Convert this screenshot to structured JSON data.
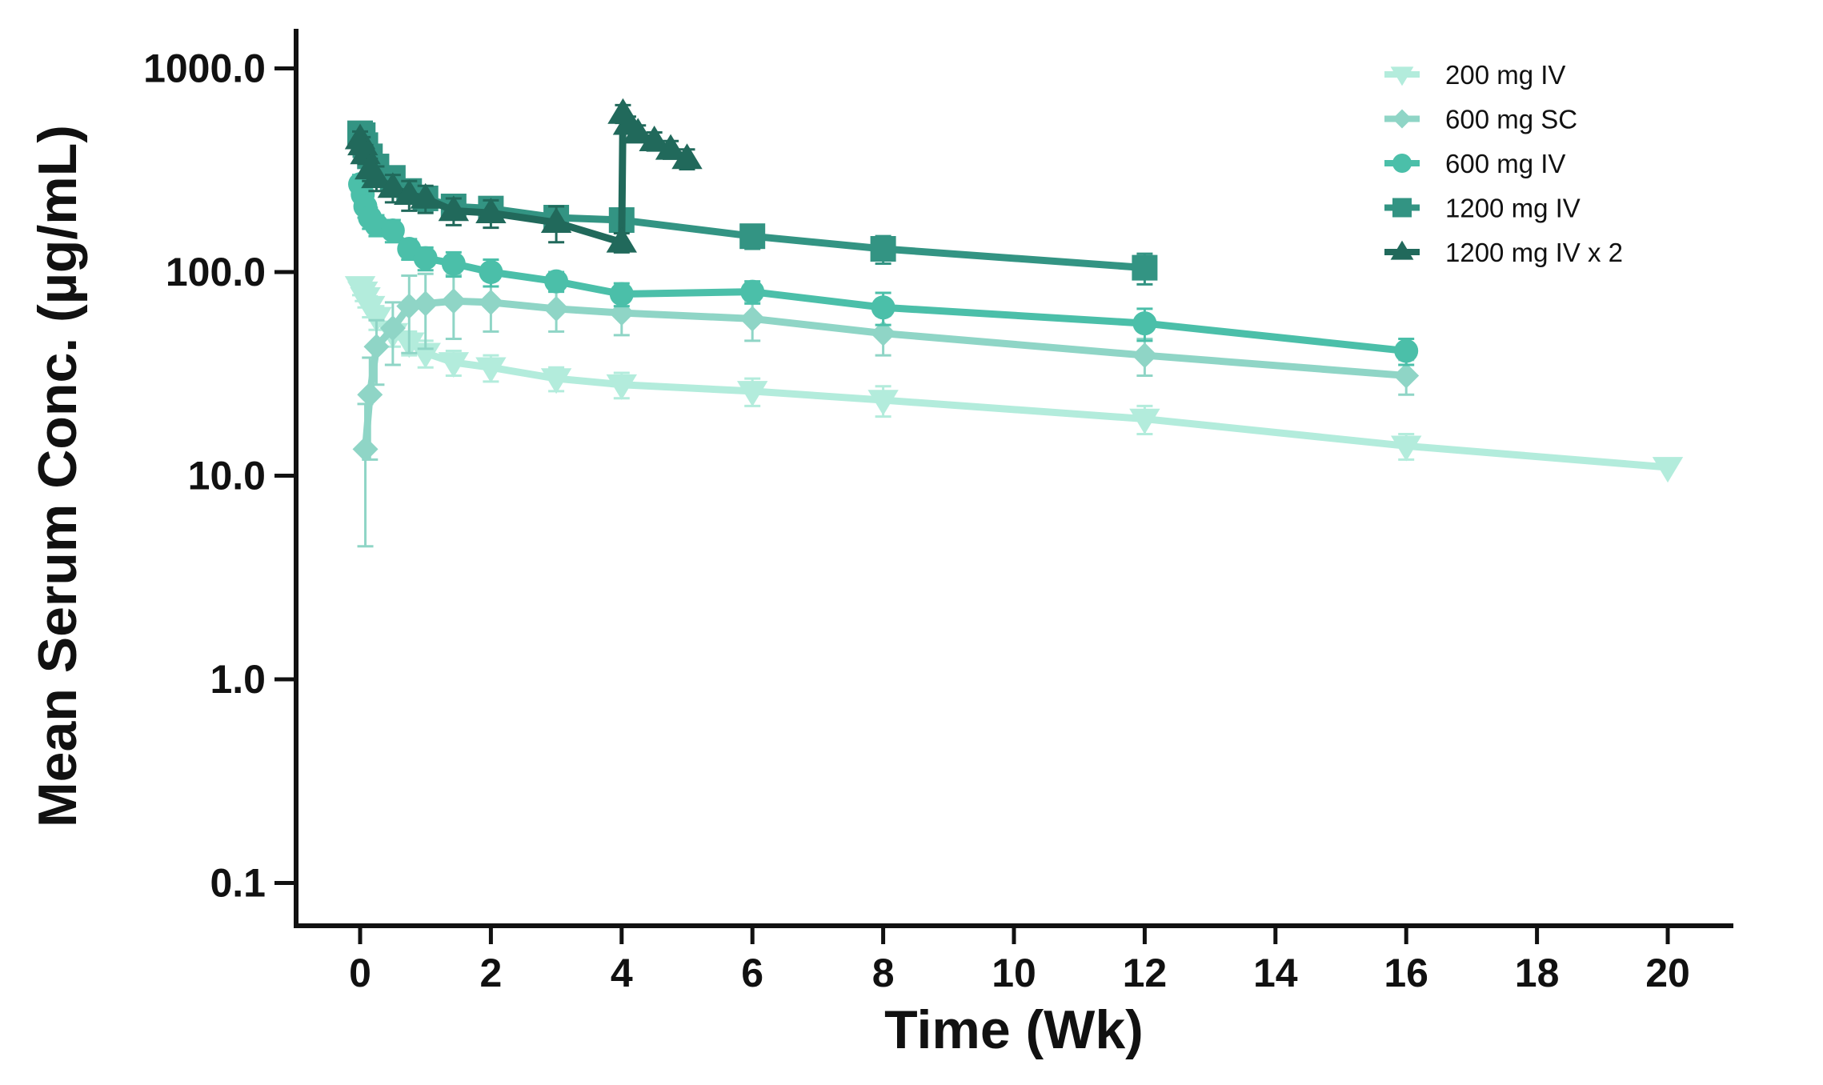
{
  "chart_data": {
    "type": "line",
    "title": "",
    "xlabel": "Time (Wk)",
    "ylabel": "Mean Serum Conc. (µg/mL)",
    "yscale": "log",
    "xlim": [
      -0.9,
      21
    ],
    "ylim": [
      0.05,
      1800
    ],
    "xticks": [
      "0",
      "2",
      "4",
      "6",
      "8",
      "10",
      "12",
      "14",
      "16",
      "18",
      "20"
    ],
    "yticks": [
      "0.1",
      "1.0",
      "10.0",
      "100.0",
      "1000.0"
    ],
    "grid": false,
    "legend_position": "top-right",
    "series": [
      {
        "name": "200 mg IV",
        "color": "#b3ecdc",
        "marker": "triangle-down",
        "x": [
          0,
          0.04,
          0.08,
          0.15,
          0.25,
          0.5,
          0.75,
          1,
          1.43,
          2,
          3,
          4,
          6,
          8,
          12,
          16,
          20
        ],
        "y": [
          85,
          80,
          75,
          68,
          60,
          50,
          45,
          40,
          36,
          34,
          30,
          28,
          26,
          23.5,
          19,
          14,
          11
        ],
        "err": [
          8,
          8,
          8,
          8,
          8,
          7,
          6,
          6,
          5,
          5,
          4,
          4,
          4,
          4,
          3,
          2,
          0
        ]
      },
      {
        "name": "600 mg SC",
        "color": "#8fd5c6",
        "marker": "diamond",
        "x": [
          0.08,
          0.15,
          0.25,
          0.5,
          0.75,
          1,
          1.43,
          2,
          3,
          4,
          6,
          8,
          12,
          16
        ],
        "y": [
          13.5,
          25,
          43,
          53,
          68,
          70,
          72,
          71,
          66,
          63,
          59,
          50,
          39,
          31
        ],
        "err": [
          9,
          13,
          15,
          18,
          28,
          28,
          25,
          20,
          15,
          14,
          13,
          11,
          8,
          6
        ]
      },
      {
        "name": "600 mg IV",
        "color": "#4bbfa9",
        "marker": "circle",
        "x": [
          0,
          0.04,
          0.08,
          0.15,
          0.25,
          0.5,
          0.75,
          1,
          1.43,
          2,
          3,
          4,
          6,
          8,
          12,
          16
        ],
        "y": [
          270,
          240,
          210,
          185,
          170,
          160,
          130,
          117,
          110,
          100,
          90,
          78,
          80,
          67,
          56,
          41
        ],
        "err": [
          30,
          30,
          25,
          22,
          20,
          20,
          15,
          15,
          15,
          15,
          10,
          10,
          10,
          12,
          10,
          6
        ]
      },
      {
        "name": "1200 mg IV",
        "color": "#339483",
        "marker": "square",
        "x": [
          0,
          0.04,
          0.08,
          0.15,
          0.25,
          0.5,
          0.75,
          1,
          1.43,
          2,
          3,
          4,
          6,
          8,
          12
        ],
        "y": [
          480,
          470,
          420,
          370,
          330,
          290,
          250,
          230,
          210,
          205,
          185,
          180,
          150,
          130,
          105
        ],
        "err": [
          40,
          40,
          40,
          40,
          40,
          35,
          30,
          30,
          25,
          20,
          20,
          20,
          20,
          20,
          18
        ]
      },
      {
        "name": "1200 mg IV x 2",
        "color": "#21695b",
        "marker": "triangle-up",
        "x": [
          0,
          0.04,
          0.08,
          0.15,
          0.25,
          0.5,
          0.75,
          1,
          1.43,
          2,
          3,
          4,
          4.02,
          4.1,
          4.25,
          4.5,
          4.75,
          5
        ],
        "y": [
          450,
          420,
          380,
          320,
          290,
          260,
          240,
          230,
          200,
          195,
          175,
          140,
          600,
          530,
          480,
          440,
          400,
          360
        ],
        "err": [
          40,
          40,
          40,
          40,
          40,
          40,
          40,
          35,
          30,
          30,
          35,
          15,
          60,
          50,
          45,
          45,
          40,
          40
        ]
      }
    ]
  }
}
